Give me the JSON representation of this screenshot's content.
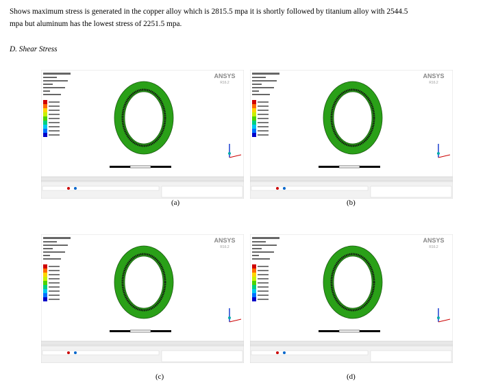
{
  "paragraph": {
    "lines": [
      "Shows maximum stress is generated in the copper alloy which is 2815.5 mpa it is shortly followed by titanium alloy with 2544.5",
      "mpa but aluminum has the lowest stress of 2251.5 mpa."
    ]
  },
  "heading": "D.   Shear Stress",
  "panels": [
    {
      "caption": "(a)",
      "brand": "ANSYS",
      "version": "R16.2"
    },
    {
      "caption": "(b)",
      "brand": "ANSYS",
      "version": "R16.2"
    },
    {
      "caption": "(c)",
      "brand": "ANSYS",
      "version": "R16.2"
    },
    {
      "caption": "(d)",
      "brand": "ANSYS",
      "version": "R16.2"
    }
  ]
}
